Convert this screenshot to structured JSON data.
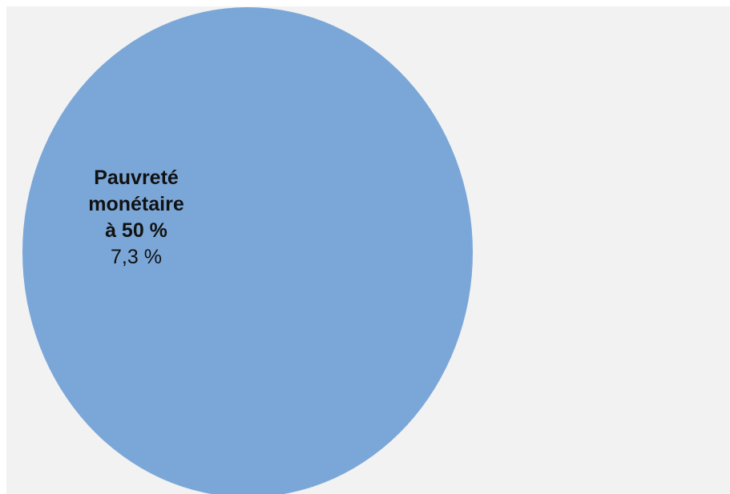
{
  "diagram": {
    "type": "venn",
    "background_color": "#f2f2f2",
    "sets": [
      {
        "name_lines": [
          "Pauvreté",
          "monétaire",
          "à 50 %"
        ],
        "value": "7,3 %",
        "fill_color": "#7ba7d8"
      }
    ]
  }
}
